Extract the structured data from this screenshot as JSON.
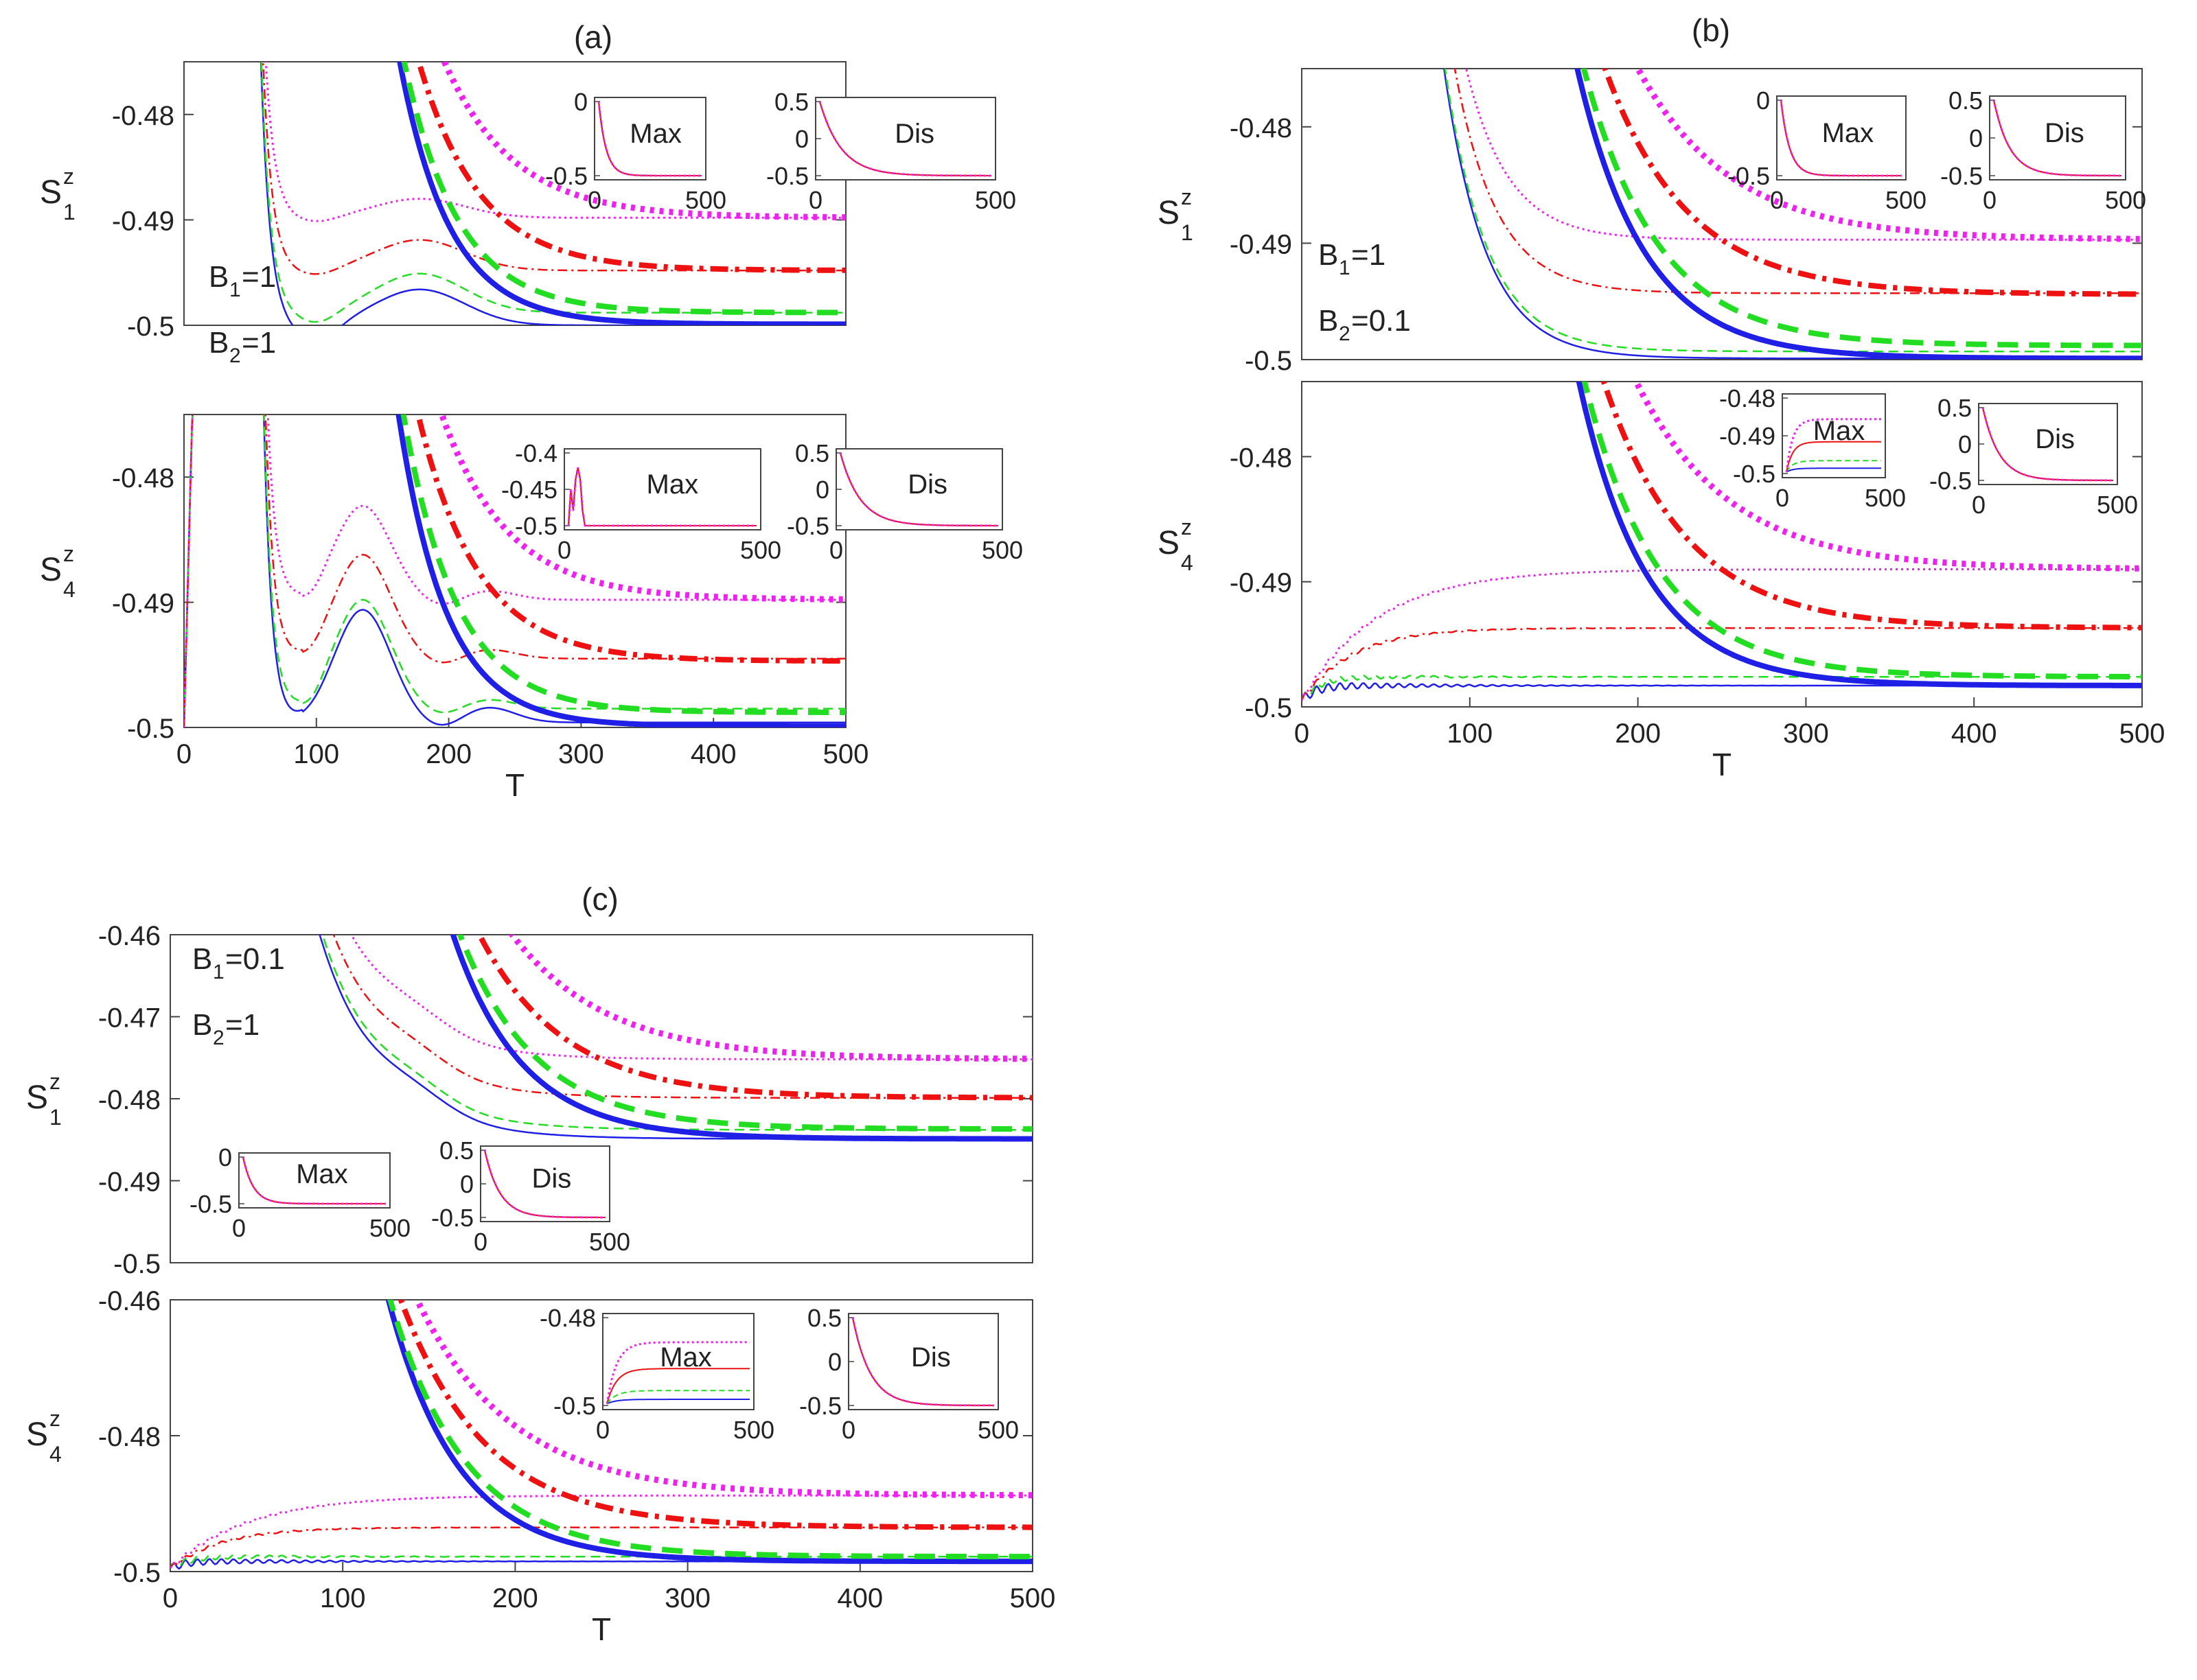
{
  "figure": {
    "colors": {
      "s1": "#1f1fe6",
      "s2": "#22dd22",
      "s3": "#ee1111",
      "s4": "#ee22ee",
      "axis": "#222222",
      "frame": "#444444"
    },
    "legend_semantics": {
      "thin_lines": "Max",
      "thick_lines": "Dis"
    },
    "inset_x_ticks": [
      "0",
      "500"
    ]
  },
  "chart_data": [
    {
      "id": "a-top",
      "panel_title": "(a)",
      "type": "line",
      "ylabel": "S",
      "ylabel_sup": "z",
      "ylabel_sub": "1",
      "xlabel": "",
      "xlim": [
        0,
        500
      ],
      "ylim": [
        -0.5,
        -0.475
      ],
      "yticks": [
        -0.5,
        -0.49,
        -0.48
      ],
      "ytick_labels": [
        "-0.5",
        "-0.49",
        "-0.48"
      ],
      "xticks": [],
      "xtick_labels": [],
      "annotation": {
        "line1": "B",
        "sub1": "1",
        "val1": "=1",
        "line2": "B",
        "sub2": "2",
        "val2": "=1"
      },
      "max_series": {
        "drop_end": 60,
        "final": [
          -0.5,
          -0.4988,
          -0.4948,
          -0.4898
        ],
        "bump_center": 178,
        "bump_height": [
          0.0034,
          0.0037,
          0.0029,
          0.0018
        ],
        "dip_center": 100,
        "dip_depth": [
          0.0017,
          0.0012,
          0.0006,
          0.0005
        ]
      },
      "dis_series": {
        "drop_start": 145,
        "final": [
          -0.4999,
          -0.4988,
          -0.4948,
          -0.4898
        ],
        "tau": [
          38,
          41,
          46,
          52
        ]
      },
      "insets": [
        {
          "label": "Max",
          "ytick_labels": [
            "0",
            "-0.5"
          ],
          "curve": "decay_from_0"
        },
        {
          "label": "Dis",
          "ytick_labels": [
            "0.5",
            "0",
            "-0.5"
          ],
          "curve": "decay_from_0.5"
        }
      ]
    },
    {
      "id": "a-bottom",
      "panel_title": "",
      "type": "line",
      "ylabel": "S",
      "ylabel_sup": "z",
      "ylabel_sub": "4",
      "xlabel": "T",
      "xlim": [
        0,
        500
      ],
      "ylim": [
        -0.5,
        -0.475
      ],
      "yticks": [
        -0.5,
        -0.49,
        -0.48
      ],
      "ytick_labels": [
        "-0.5",
        "-0.49",
        "-0.48"
      ],
      "xticks": [
        0,
        100,
        200,
        300,
        400,
        500
      ],
      "xtick_labels": [
        "0",
        "100",
        "200",
        "300",
        "400",
        "500"
      ],
      "max_series": {
        "initial_rise_end": 10,
        "drop_end": 60,
        "final": [
          -0.4996,
          -0.4985,
          -0.4945,
          -0.4898
        ],
        "dip_center": 97,
        "dip_min": [
          -0.4997,
          -0.4992,
          -0.495,
          -0.4905
        ],
        "peak_center": 135,
        "peak": [
          -0.4906,
          -0.4898,
          -0.4862,
          -0.4823
        ]
      },
      "dis_series": {
        "drop_start": 145,
        "final": [
          -0.4999,
          -0.4988,
          -0.4947,
          -0.4898
        ],
        "tau": [
          36,
          40,
          45,
          50
        ]
      },
      "insets": [
        {
          "label": "Max",
          "ytick_labels": [
            "-0.4",
            "-0.45",
            "-0.5"
          ],
          "curve": "spike"
        },
        {
          "label": "Dis",
          "ytick_labels": [
            "0.5",
            "0",
            "-0.5"
          ],
          "curve": "decay_from_0.5"
        }
      ]
    },
    {
      "id": "b-top",
      "panel_title": "(b)",
      "type": "line",
      "ylabel": "S",
      "ylabel_sup": "z",
      "ylabel_sub": "1",
      "xlabel": "",
      "xlim": [
        0,
        500
      ],
      "ylim": [
        -0.5,
        -0.475
      ],
      "yticks": [
        -0.5,
        -0.49,
        -0.48
      ],
      "ytick_labels": [
        "-0.5",
        "-0.49",
        "-0.48"
      ],
      "xticks": [],
      "xtick_labels": [],
      "annotation": {
        "line1": "B",
        "sub1": "1",
        "val1": "=1",
        "line2": "B",
        "sub2": "2",
        "val2": "=0.1"
      },
      "max_series": {
        "drop_end": 80,
        "final": [
          -0.4999,
          -0.4993,
          -0.4943,
          -0.4897
        ],
        "tau": [
          25,
          25,
          25,
          25
        ]
      },
      "dis_series": {
        "drop_start": 145,
        "final": [
          -0.4999,
          -0.4988,
          -0.4944,
          -0.4897
        ],
        "tau": [
          40,
          44,
          49,
          55
        ]
      },
      "insets": [
        {
          "label": "Max",
          "ytick_labels": [
            "0",
            "-0.5"
          ],
          "curve": "decay_from_0"
        },
        {
          "label": "Dis",
          "ytick_labels": [
            "0.5",
            "0",
            "-0.5"
          ],
          "curve": "decay_from_0.5"
        }
      ]
    },
    {
      "id": "b-bottom",
      "panel_title": "",
      "type": "line",
      "ylabel": "S",
      "ylabel_sup": "z",
      "ylabel_sub": "4",
      "xlabel": "T",
      "xlim": [
        0,
        500
      ],
      "ylim": [
        -0.5,
        -0.474
      ],
      "yticks": [
        -0.5,
        -0.49,
        -0.48
      ],
      "ytick_labels": [
        "-0.5",
        "-0.49",
        "-0.48"
      ],
      "xticks": [
        0,
        100,
        200,
        300,
        400,
        500
      ],
      "xtick_labels": [
        "0",
        "100",
        "200",
        "300",
        "400",
        "500"
      ],
      "max_series": {
        "rise_from": -0.4995,
        "final": [
          -0.4983,
          -0.4976,
          -0.4937,
          -0.489
        ],
        "tau": [
          8,
          10,
          30,
          45
        ],
        "oscillation": [
          0.0004,
          0.0003,
          0.0002,
          0.0002
        ]
      },
      "dis_series": {
        "drop_start": 145,
        "final": [
          -0.4983,
          -0.4976,
          -0.4937,
          -0.489
        ],
        "tau": [
          40,
          44,
          49,
          55
        ]
      },
      "insets": [
        {
          "label": "Max",
          "ytick_labels": [
            "-0.48",
            "-0.49",
            "-0.5"
          ],
          "curve": "rise_levels"
        },
        {
          "label": "Dis",
          "ytick_labels": [
            "0.5",
            "0",
            "-0.5"
          ],
          "curve": "decay_from_0.5"
        }
      ]
    },
    {
      "id": "c-top",
      "panel_title": "(c)",
      "type": "line",
      "ylabel": "S",
      "ylabel_sup": "z",
      "ylabel_sub": "1",
      "xlabel": "",
      "xlim": [
        0,
        500
      ],
      "ylim": [
        -0.5,
        -0.46
      ],
      "yticks": [
        -0.5,
        -0.49,
        -0.48,
        -0.47,
        -0.46
      ],
      "ytick_labels": [
        "-0.5",
        "-0.49",
        "-0.48",
        "-0.47",
        "-0.46"
      ],
      "xticks": [],
      "xtick_labels": [],
      "annotation": {
        "line1": "B",
        "sub1": "1",
        "val1": "=0.1",
        "line2": "B",
        "sub2": "2",
        "val2": "=1"
      },
      "max_series": {
        "drop_end": 80,
        "final": [
          -0.4849,
          -0.4838,
          -0.4799,
          -0.4752
        ],
        "tau": [
          35,
          35,
          35,
          35
        ],
        "shoulder": 140
      },
      "dis_series": {
        "drop_start": 145,
        "final": [
          -0.4849,
          -0.4837,
          -0.4799,
          -0.4752
        ],
        "tau": [
          40,
          44,
          49,
          55
        ]
      },
      "insets": [
        {
          "label": "Max",
          "ytick_labels": [
            "0",
            "-0.5"
          ],
          "curve": "decay_from_0"
        },
        {
          "label": "Dis",
          "ytick_labels": [
            "0.5",
            "0",
            "-0.5"
          ],
          "curve": "decay_from_0.5"
        }
      ]
    },
    {
      "id": "c-bottom",
      "panel_title": "",
      "type": "line",
      "ylabel": "S",
      "ylabel_sup": "z",
      "ylabel_sub": "4",
      "xlabel": "T",
      "xlim": [
        0,
        500
      ],
      "ylim": [
        -0.5,
        -0.46
      ],
      "yticks": [
        -0.5,
        -0.48,
        -0.46
      ],
      "ytick_labels": [
        "-0.5",
        "-0.48",
        "-0.46"
      ],
      "xticks": [
        0,
        100,
        200,
        300,
        400,
        500
      ],
      "xtick_labels": [
        "0",
        "100",
        "200",
        "300",
        "400",
        "500"
      ],
      "max_series": {
        "rise_from": -0.4995,
        "final": [
          -0.4985,
          -0.4978,
          -0.4935,
          -0.4888
        ],
        "tau": [
          8,
          10,
          30,
          45
        ],
        "oscillation": [
          0.0006,
          0.0005,
          0.0003,
          0.0003
        ]
      },
      "dis_series": {
        "drop_start": 125,
        "final": [
          -0.4985,
          -0.4978,
          -0.4935,
          -0.4888
        ],
        "tau": [
          40,
          44,
          49,
          55
        ]
      },
      "insets": [
        {
          "label": "Max",
          "ytick_labels": [
            "-0.48",
            "-0.5"
          ],
          "curve": "rise_levels"
        },
        {
          "label": "Dis",
          "ytick_labels": [
            "0.5",
            "0",
            "-0.5"
          ],
          "curve": "decay_from_0.5"
        }
      ]
    }
  ]
}
